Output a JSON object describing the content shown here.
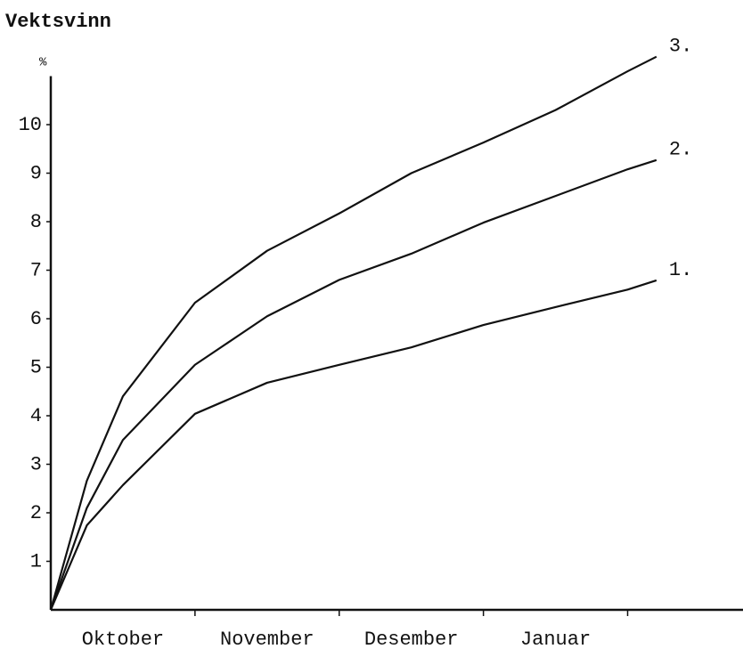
{
  "chart_data": {
    "type": "line",
    "title": "Vektsvinn",
    "y_label": "%",
    "categories": [
      "Oktober",
      "November",
      "Desember",
      "Januar"
    ],
    "x": [
      0,
      0.25,
      0.5,
      1,
      1.5,
      2,
      2.5,
      3,
      3.5,
      4,
      4.2
    ],
    "xlim": [
      0,
      4.8
    ],
    "xticks": [
      1,
      2,
      3,
      4
    ],
    "ylim": [
      0,
      11.5
    ],
    "yticks": [
      1,
      2,
      3,
      4,
      5,
      6,
      7,
      8,
      9,
      10
    ],
    "series": [
      {
        "name": "1.",
        "color": "#111111",
        "values": [
          0,
          1.74,
          2.57,
          4.04,
          4.68,
          5.05,
          5.41,
          5.87,
          6.24,
          6.6,
          6.79
        ]
      },
      {
        "name": "2.",
        "color": "#111111",
        "values": [
          0,
          2.1,
          3.5,
          5.05,
          6.05,
          6.8,
          7.34,
          7.98,
          8.53,
          9.08,
          9.27
        ]
      },
      {
        "name": "3.",
        "color": "#111111",
        "values": [
          0,
          2.66,
          4.4,
          6.33,
          7.4,
          8.17,
          9.0,
          9.63,
          10.3,
          11.1,
          11.4
        ]
      }
    ]
  }
}
